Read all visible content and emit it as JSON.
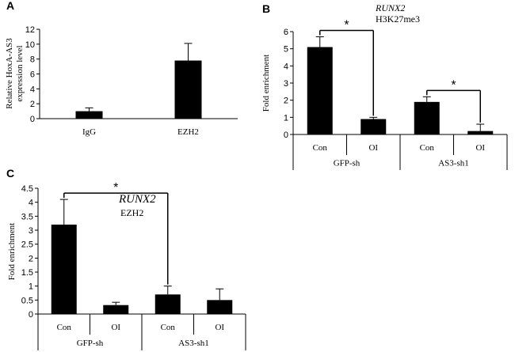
{
  "chart_data": [
    {
      "id": "A",
      "type": "bar",
      "panel_label": "A",
      "ylabel_lines": [
        "Relative HoxA-AS3",
        "expression level"
      ],
      "ylim": [
        0,
        12
      ],
      "yticks": [
        0,
        2,
        4,
        6,
        8,
        10,
        12
      ],
      "categories": [
        "IgG",
        "EZH2"
      ],
      "series": [
        {
          "values": [
            1.0,
            7.8
          ],
          "errors": [
            0.45,
            2.3
          ]
        }
      ]
    },
    {
      "id": "B",
      "type": "bar",
      "panel_label": "B",
      "ylabel": "Fold enrichment",
      "ylim": [
        0,
        6
      ],
      "yticks": [
        0,
        1,
        2,
        3,
        4,
        5,
        6
      ],
      "categories": [
        "Con",
        "OI",
        "Con",
        "OI"
      ],
      "groups": [
        "GFP-sh",
        "AS3-sh1"
      ],
      "annotation": {
        "gene": "RUNX2",
        "mark": "H3K27me3"
      },
      "series": [
        {
          "values": [
            5.1,
            0.9,
            1.9,
            0.2
          ],
          "errors": [
            0.6,
            0.1,
            0.3,
            0.4
          ]
        }
      ],
      "significance": [
        {
          "from": 0,
          "to": 1,
          "label": "*"
        },
        {
          "from": 2,
          "to": 3,
          "label": "*"
        }
      ]
    },
    {
      "id": "C",
      "type": "bar",
      "panel_label": "C",
      "ylabel": "Fold enrichment",
      "ylim": [
        0,
        4.5
      ],
      "yticks": [
        0,
        0.5,
        1,
        1.5,
        2,
        2.5,
        3,
        3.5,
        4,
        4.5
      ],
      "categories": [
        "Con",
        "OI",
        "Con",
        "OI"
      ],
      "groups": [
        "GFP-sh",
        "AS3-sh1"
      ],
      "annotation": {
        "gene": "RUNX2",
        "mark": "EZH2"
      },
      "series": [
        {
          "values": [
            3.2,
            0.32,
            0.7,
            0.5
          ],
          "errors": [
            0.9,
            0.1,
            0.3,
            0.4
          ]
        }
      ],
      "significance": [
        {
          "from": 0,
          "to": 2,
          "label": "*"
        }
      ]
    }
  ]
}
